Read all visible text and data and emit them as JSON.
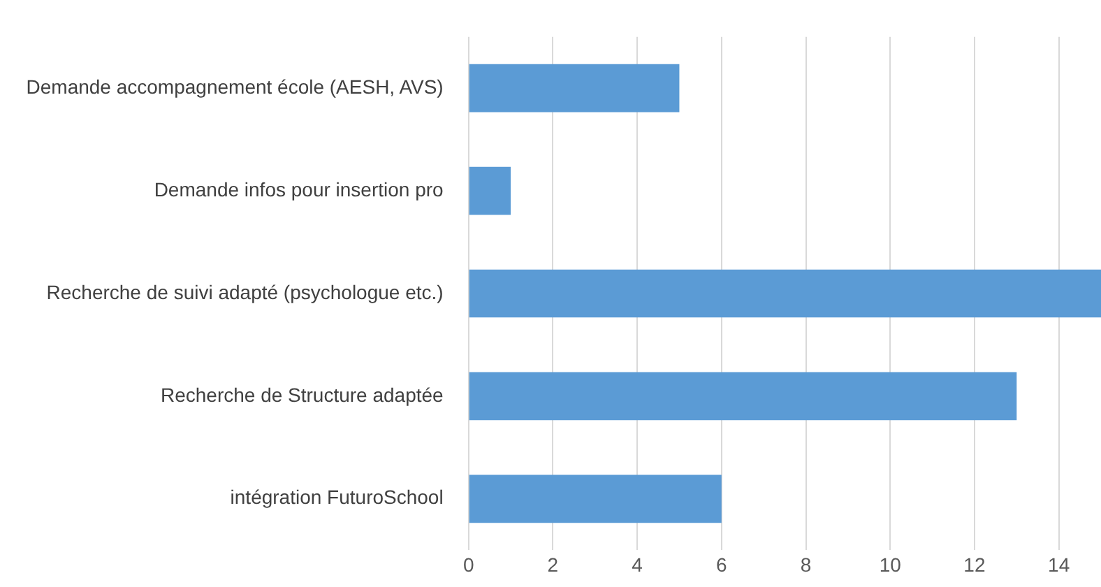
{
  "chart_data": {
    "type": "bar",
    "orientation": "horizontal",
    "categories": [
      "Demande accompagnement école (AESH, AVS)",
      "Demande infos pour insertion pro",
      "Recherche de suivi adapté (psychologue etc.)",
      "Recherche de Structure adaptée",
      "intégration FuturoSchool"
    ],
    "values": [
      5,
      1,
      15,
      13,
      6
    ],
    "color": "#5b9bd5",
    "xlim": [
      0,
      15
    ],
    "xticks": [
      0,
      2,
      4,
      6,
      8,
      10,
      12,
      14
    ],
    "grid": "x",
    "legend": false
  }
}
